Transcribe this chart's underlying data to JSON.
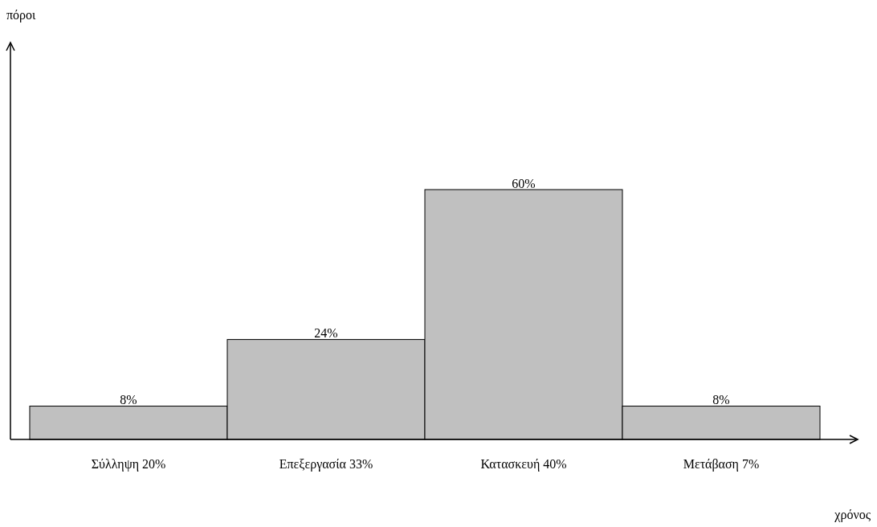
{
  "chart_data": {
    "type": "bar",
    "annotations": [
      "πόροι",
      "χρόνος"
    ],
    "categories": [
      "Σύλληψη 20%",
      "Επεξεργασία 33%",
      "Κατασκευή 40%",
      "Μετάβαση 7%"
    ],
    "values": [
      8,
      24,
      60,
      8
    ],
    "value_labels": [
      "8%",
      "24%",
      "60%",
      "8%"
    ],
    "color": "#c0c0c0"
  }
}
